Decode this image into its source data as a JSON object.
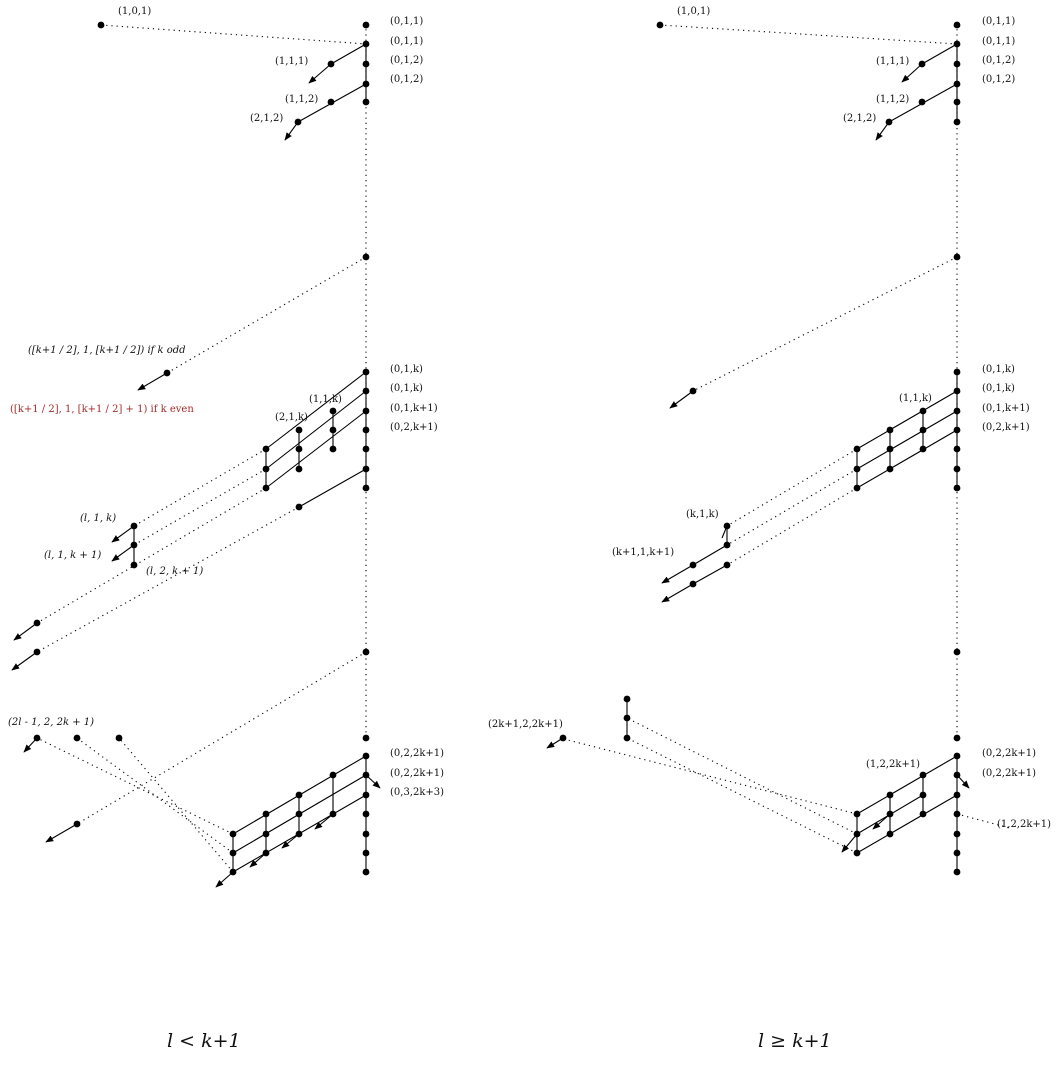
{
  "panels": {
    "left": {
      "caption": "l < k+1",
      "labels": {
        "top_left": "(1,0,1)",
        "r1": "(0,1,1)",
        "r2": "(0,1,1)",
        "r3": "(0,1,2)",
        "r4": "(0,1,2)",
        "l111": "(1,1,1)",
        "l112": "(1,1,2)",
        "l212": "(2,1,2)",
        "odd_formula": "([k+1 / 2], 1, [k+1 / 2]) if k odd",
        "even_formula": "([k+1 / 2], 1, [k+1 / 2] + 1)   if k even",
        "m1": "(0,1,k)",
        "m2": "(0,1,k)",
        "m3": "(0,1,k+1)",
        "m4": "(0,2,k+1)",
        "l11k": "(1,1,k)",
        "l21k": "(2,1,k)",
        "ll1k": "(l, 1, k)",
        "ll1k1": "(l, 1, k + 1)",
        "ll2k1": "(l, 2, k + 1)",
        "b1": "(0,2,2k+1)",
        "b2": "(0,2,2k+1)",
        "b3": "(0,3,2k+3)",
        "bottom": "(2l - 1, 2, 2k + 1)"
      }
    },
    "right": {
      "caption": "l ≥ k+1",
      "labels": {
        "top_left": "(1,0,1)",
        "r1": "(0,1,1)",
        "r2": "(0,1,1)",
        "r3": "(0,1,2)",
        "r4": "(0,1,2)",
        "l111": "(1,1,1)",
        "l112": "(1,1,2)",
        "l212": "(2,1,2)",
        "m1": "(0,1,k)",
        "m2": "(0,1,k)",
        "m3": "(0,1,k+1)",
        "m4": "(0,2,k+1)",
        "l11k": "(1,1,k)",
        "lk1k": "(k,1,k)",
        "lk11k1": "(k+1,1,k+1)",
        "b1": "(0,2,2k+1)",
        "b2": "(0,2,2k+1)",
        "l122k1": "(1,2,2k+1)",
        "l122k1b": "(1,2,2k+1)",
        "bottom": "(2k+1,2,2k+1)"
      }
    }
  },
  "colors": {
    "ink": "#000000",
    "highlight": "#a52a2a"
  }
}
